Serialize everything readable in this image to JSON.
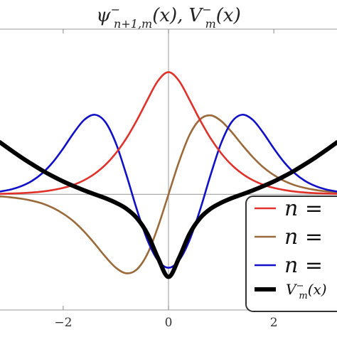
{
  "chart_data": {
    "type": "line",
    "title": {
      "psi": "ψ",
      "psi_sup": "−",
      "psi_sub": "n+1,m",
      "psi_arg": "(x),",
      "V": "V",
      "V_sup": "−",
      "V_sub": "m",
      "V_arg": "(x)"
    },
    "xlim": [
      -3.2,
      3.2
    ],
    "ylim": [
      -0.7,
      1.0
    ],
    "x_ticks": [
      {
        "value": -2,
        "label": "−2"
      },
      {
        "value": 0,
        "label": "0"
      },
      {
        "value": 2,
        "label": "2"
      }
    ],
    "grid": false,
    "legend_position": "bottom-right",
    "series": [
      {
        "name": "n =",
        "color": "#e0322b",
        "x": [
          -3.2,
          -3,
          -2.8,
          -2.6,
          -2.4,
          -2.2,
          -2,
          -1.8,
          -1.6,
          -1.4,
          -1.2,
          -1,
          -0.8,
          -0.6,
          -0.4,
          -0.2,
          0,
          0.2,
          0.4,
          0.6,
          0.8,
          1,
          1.2,
          1.4,
          1.6,
          1.8,
          2,
          2.2,
          2.4,
          2.6,
          2.8,
          3,
          3.2
        ],
        "y": [
          0.003,
          0.005,
          0.007,
          0.011,
          0.017,
          0.026,
          0.039,
          0.058,
          0.086,
          0.125,
          0.178,
          0.249,
          0.339,
          0.449,
          0.572,
          0.687,
          0.74,
          0.687,
          0.572,
          0.449,
          0.339,
          0.249,
          0.178,
          0.125,
          0.086,
          0.058,
          0.039,
          0.026,
          0.017,
          0.011,
          0.007,
          0.005,
          0.003
        ]
      },
      {
        "name": "n =",
        "color": "#9a6a3a",
        "x": [
          -3.2,
          -3,
          -2.8,
          -2.6,
          -2.4,
          -2.2,
          -2,
          -1.8,
          -1.6,
          -1.4,
          -1.2,
          -1,
          -0.8,
          -0.6,
          -0.4,
          -0.2,
          0,
          0.2,
          0.4,
          0.6,
          0.8,
          1,
          1.2,
          1.4,
          1.6,
          1.8,
          2,
          2.2,
          2.4,
          2.6,
          2.8,
          3,
          3.2
        ],
        "y": [
          -0.012,
          -0.018,
          -0.026,
          -0.038,
          -0.055,
          -0.081,
          -0.117,
          -0.164,
          -0.226,
          -0.299,
          -0.377,
          -0.444,
          -0.478,
          -0.454,
          -0.36,
          -0.197,
          0,
          0.197,
          0.36,
          0.454,
          0.478,
          0.444,
          0.377,
          0.299,
          0.226,
          0.164,
          0.117,
          0.081,
          0.055,
          0.038,
          0.026,
          0.018,
          0.012
        ]
      },
      {
        "name": "n =",
        "color": "#1010c8",
        "x": [
          -3.2,
          -3,
          -2.8,
          -2.6,
          -2.4,
          -2.2,
          -2,
          -1.8,
          -1.6,
          -1.4,
          -1.2,
          -1,
          -0.8,
          -0.6,
          -0.4,
          -0.2,
          0,
          0.2,
          0.4,
          0.6,
          0.8,
          1,
          1.2,
          1.4,
          1.6,
          1.8,
          2,
          2.2,
          2.4,
          2.6,
          2.8,
          3,
          3.2
        ],
        "y": [
          0.017,
          0.029,
          0.049,
          0.08,
          0.127,
          0.193,
          0.278,
          0.372,
          0.451,
          0.482,
          0.438,
          0.31,
          0.118,
          -0.093,
          -0.277,
          -0.4,
          -0.444,
          -0.4,
          -0.277,
          -0.093,
          0.118,
          0.31,
          0.438,
          0.482,
          0.451,
          0.372,
          0.278,
          0.193,
          0.127,
          0.08,
          0.049,
          0.029,
          0.017
        ]
      },
      {
        "name": "V_m^−(x)",
        "color": "#000000",
        "x": [
          -3.2,
          -3,
          -2.8,
          -2.6,
          -2.4,
          -2.2,
          -2,
          -1.8,
          -1.6,
          -1.4,
          -1.2,
          -1,
          -0.8,
          -0.6,
          -0.4,
          -0.2,
          0,
          0.2,
          0.4,
          0.6,
          0.8,
          1,
          1.2,
          1.4,
          1.6,
          1.8,
          2,
          2.2,
          2.4,
          2.6,
          2.8,
          3,
          3.2
        ],
        "y": [
          0.315,
          0.269,
          0.225,
          0.184,
          0.145,
          0.11,
          0.078,
          0.05,
          0.024,
          0.0,
          -0.023,
          -0.051,
          -0.087,
          -0.144,
          -0.239,
          -0.385,
          -0.5,
          -0.385,
          -0.239,
          -0.144,
          -0.087,
          -0.051,
          -0.023,
          0.0,
          0.024,
          0.05,
          0.078,
          0.11,
          0.145,
          0.184,
          0.225,
          0.269,
          0.315
        ]
      }
    ],
    "legend": [
      {
        "label": "n =",
        "color": "#e0322b"
      },
      {
        "label": "n =",
        "color": "#9a6a3a"
      },
      {
        "label": "n =",
        "color": "#1010c8"
      },
      {
        "label_main": "V",
        "label_sup": "−",
        "label_sub": "m",
        "label_arg": "(x)",
        "color": "#000000"
      }
    ]
  }
}
